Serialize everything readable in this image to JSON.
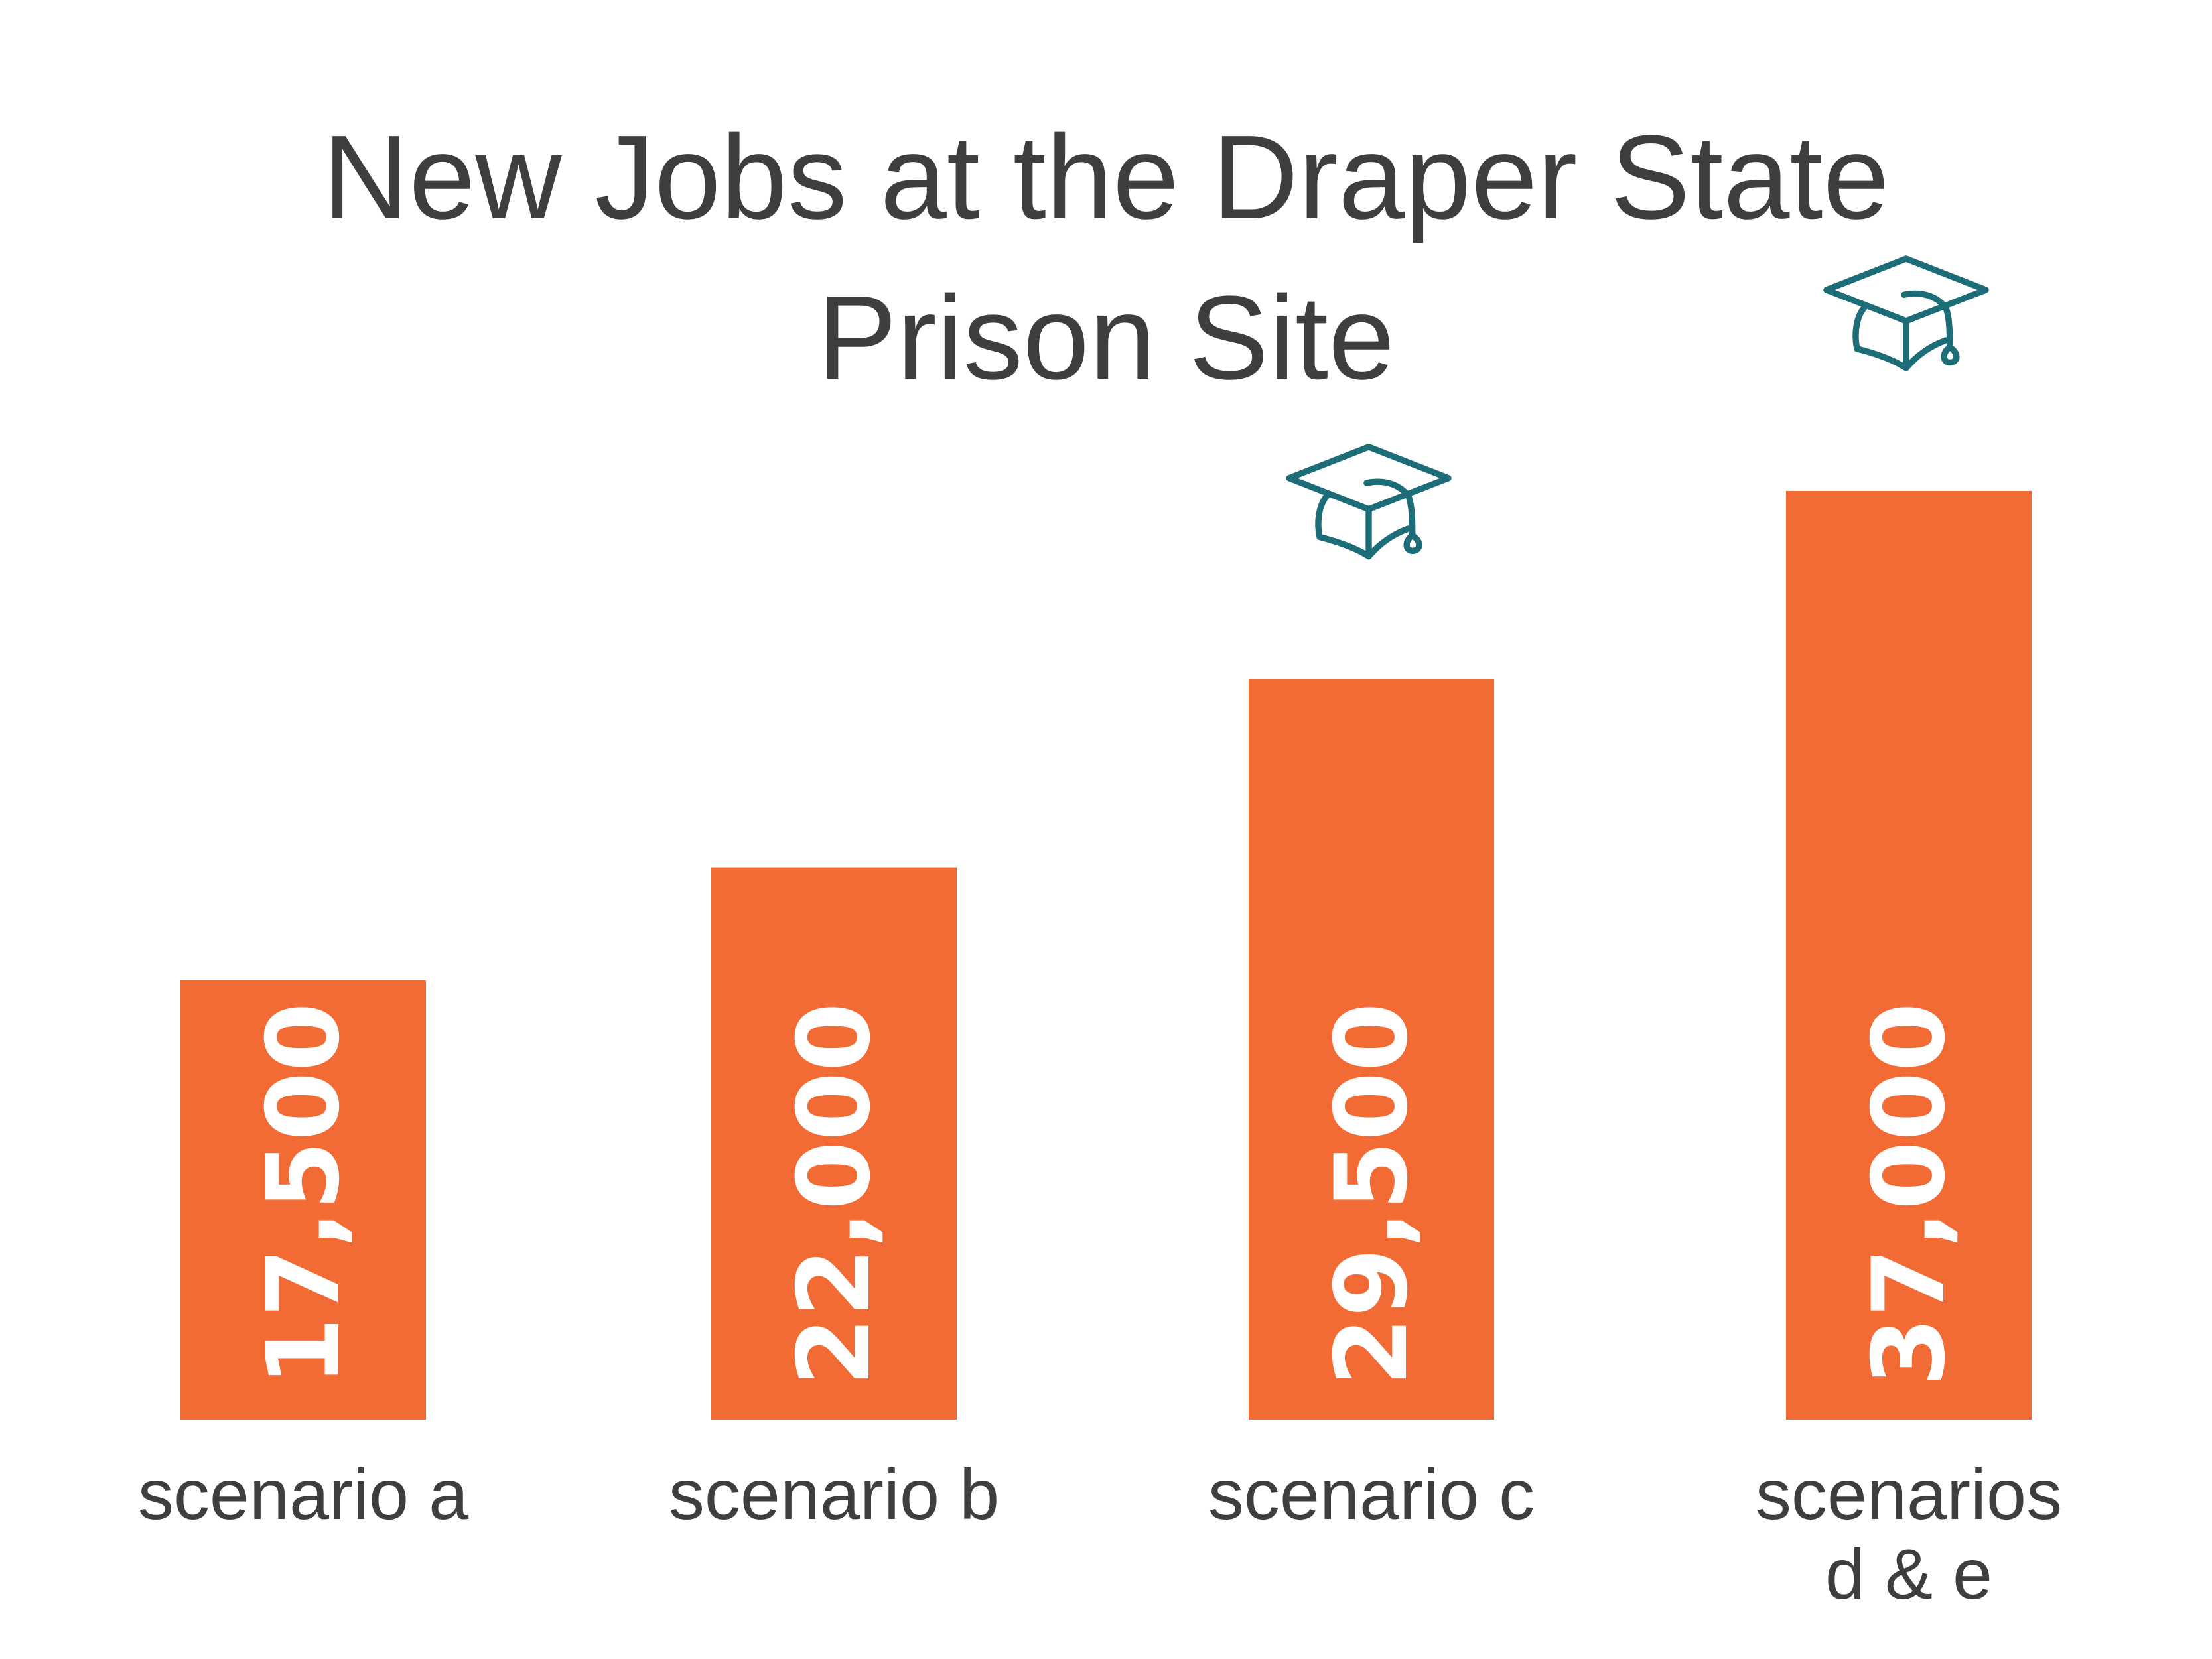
{
  "chart_data": {
    "type": "bar",
    "title_lines": [
      "New Jobs at the Draper State",
      "Prison Site"
    ],
    "categories": [
      [
        "scenario a"
      ],
      [
        "scenario b"
      ],
      [
        "scenario c"
      ],
      [
        "scenarios",
        "d & e"
      ]
    ],
    "values": [
      17500,
      22000,
      29500,
      37000
    ],
    "value_labels": [
      "17,500",
      "22,000",
      "29,500",
      "37,000"
    ],
    "icons": [
      null,
      null,
      "graduation-cap-icon",
      "graduation-cap-icon"
    ],
    "bar_color": "#f26b35",
    "icon_color": "#1d6d78",
    "value_label_color": "#ffffff",
    "text_color": "#3e3e3e"
  }
}
